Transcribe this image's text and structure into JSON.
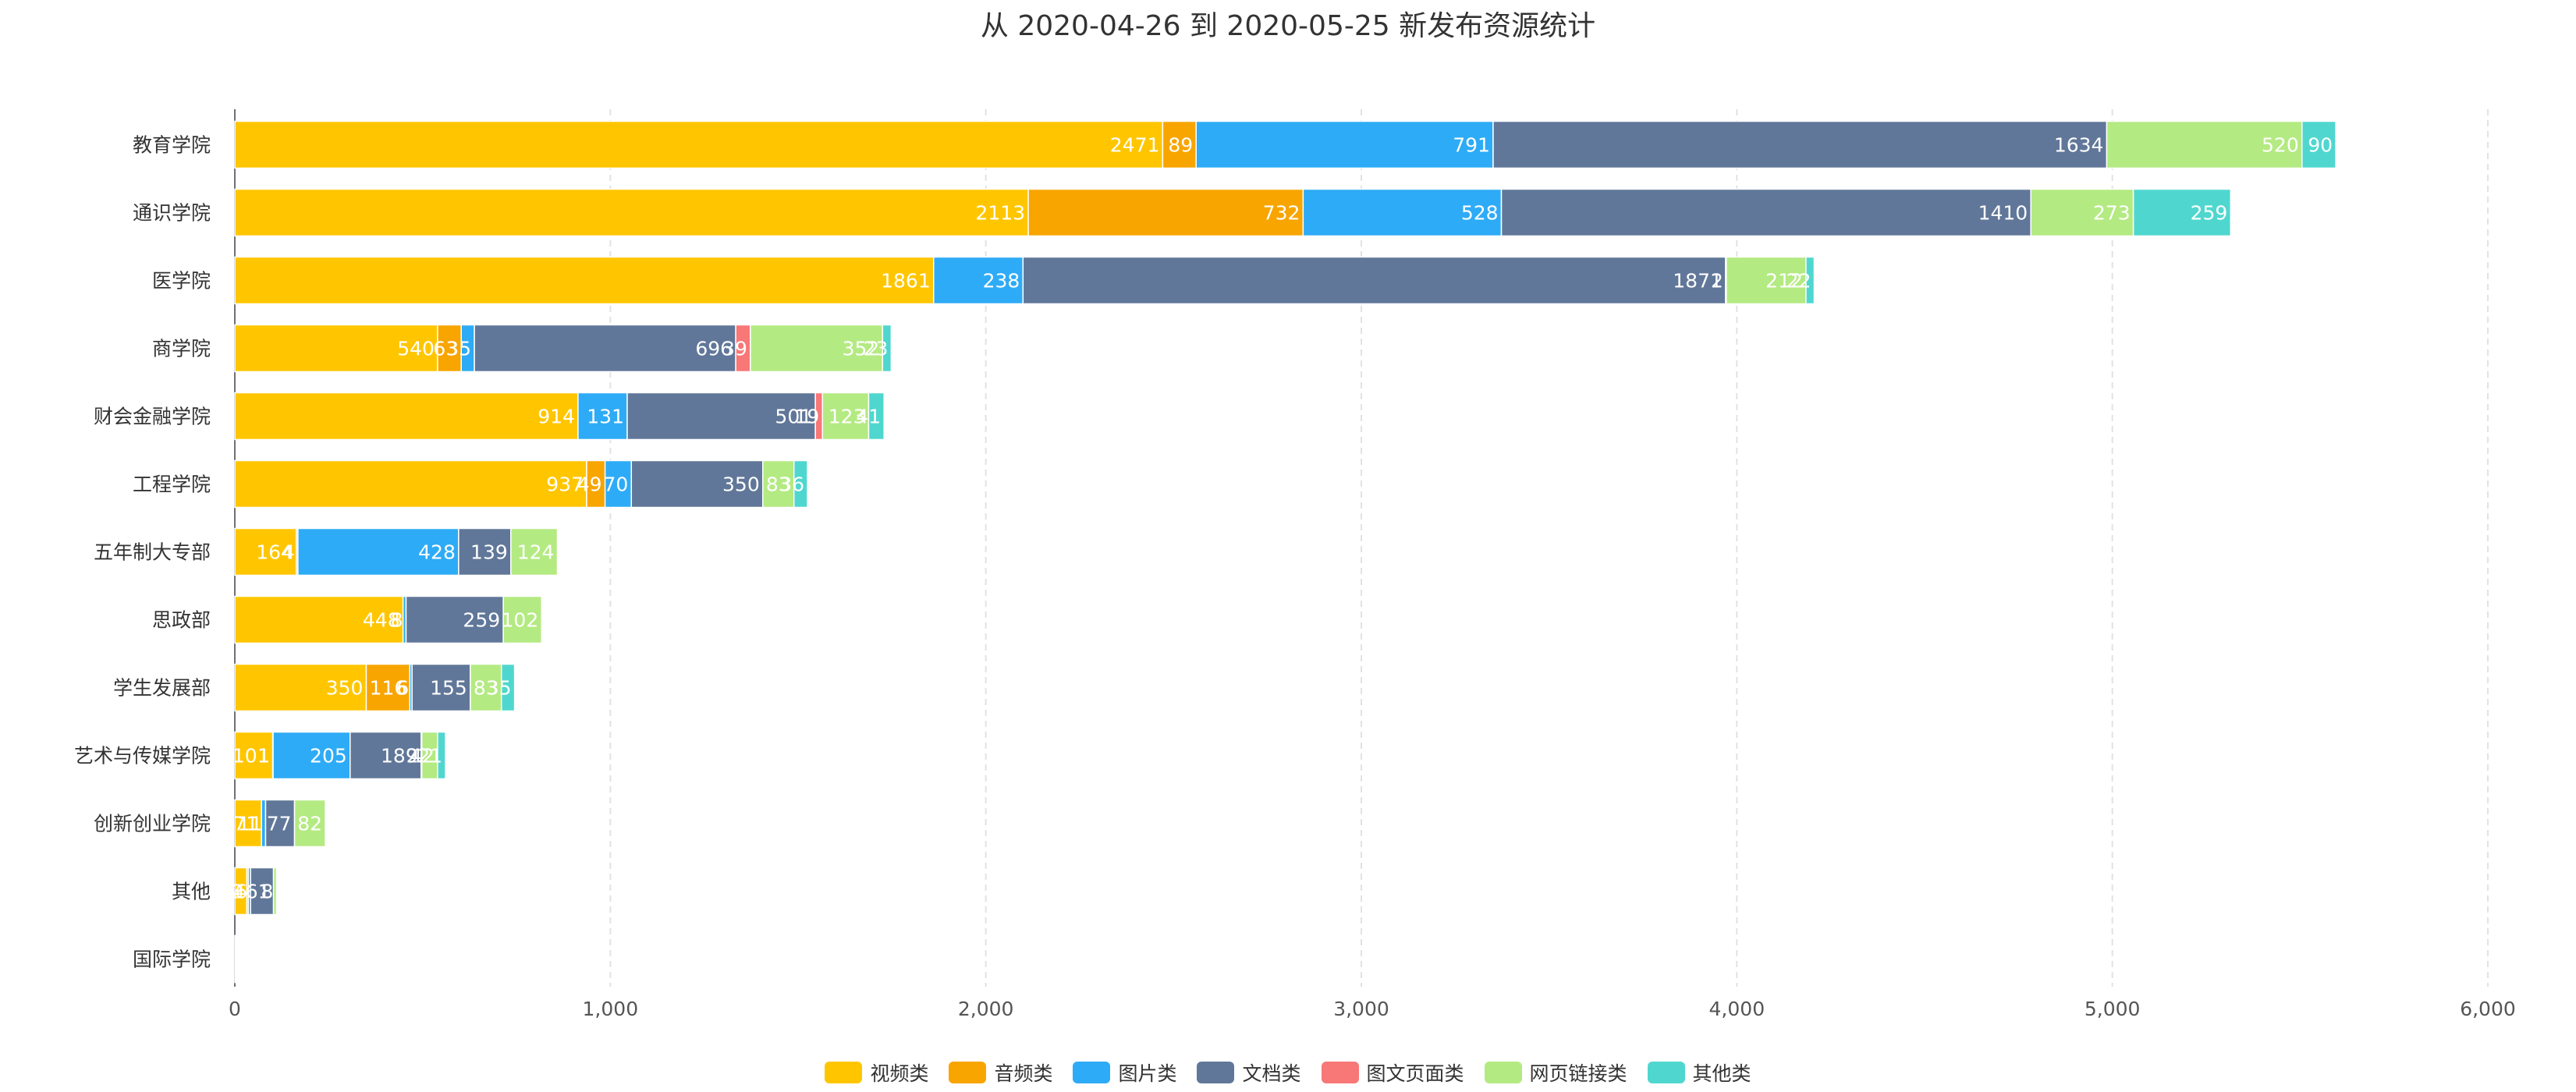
{
  "chart_data": {
    "type": "bar",
    "orientation": "horizontal",
    "stacked": true,
    "title": "从 2020-04-26 到 2020-05-25 新发布资源统计",
    "xlim": [
      0,
      6000
    ],
    "x_ticks": [
      0,
      1000,
      2000,
      3000,
      4000,
      5000,
      6000
    ],
    "x_tick_labels": [
      "0",
      "1,000",
      "2,000",
      "3,000",
      "4,000",
      "5,000",
      "6,000"
    ],
    "grid": true,
    "legend_position": "bottom",
    "categories": [
      "教育学院",
      "通识学院",
      "医学院",
      "商学院",
      "财会金融学院",
      "工程学院",
      "五年制大专部",
      "思政部",
      "学生发展部",
      "艺术与传媒学院",
      "创新创业学院",
      "其他",
      "国际学院"
    ],
    "series": [
      {
        "name": "视频类",
        "color": "#FFC600",
        "values": [
          2471,
          2113,
          1861,
          540,
          914,
          937,
          164,
          448,
          350,
          101,
          71,
          32,
          1
        ]
      },
      {
        "name": "音频类",
        "color": "#F8A500",
        "values": [
          89,
          732,
          0,
          63,
          0,
          49,
          4,
          0,
          116,
          1,
          0,
          4,
          0
        ]
      },
      {
        "name": "图片类",
        "color": "#2EABF6",
        "values": [
          791,
          528,
          238,
          35,
          131,
          70,
          428,
          8,
          6,
          205,
          11,
          6,
          0
        ]
      },
      {
        "name": "文档类",
        "color": "#607799",
        "values": [
          1634,
          1410,
          1871,
          696,
          501,
          350,
          139,
          259,
          155,
          189,
          77,
          61,
          2
        ]
      },
      {
        "name": "图文页面类",
        "color": "#F87777",
        "values": [
          0,
          0,
          2,
          39,
          19,
          0,
          0,
          0,
          0,
          2,
          0,
          0,
          0
        ]
      },
      {
        "name": "网页链接类",
        "color": "#B4EA82",
        "values": [
          520,
          273,
          212,
          352,
          123,
          83,
          124,
          102,
          83,
          42,
          82,
          8,
          0
        ]
      },
      {
        "name": "其他类",
        "color": "#4FD7CF",
        "values": [
          90,
          259,
          22,
          23,
          41,
          36,
          0,
          0,
          35,
          21,
          0,
          0,
          0
        ]
      }
    ]
  }
}
